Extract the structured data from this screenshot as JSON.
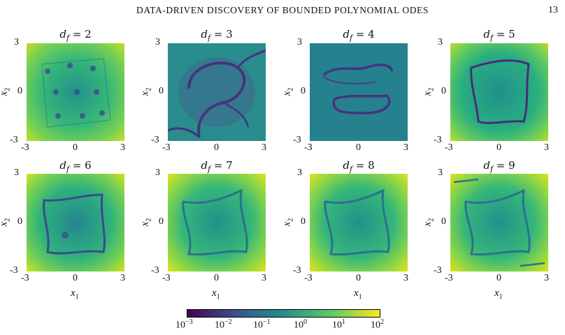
{
  "header": {
    "title": "DATA-DRIVEN DISCOVERY OF BOUNDED POLYNOMIAL ODES",
    "page_number": "13"
  },
  "panels": [
    {
      "title": {
        "var": "d",
        "sub": "f",
        "value": "2"
      }
    },
    {
      "title": {
        "var": "d",
        "sub": "f",
        "value": "3"
      }
    },
    {
      "title": {
        "var": "d",
        "sub": "f",
        "value": "4"
      }
    },
    {
      "title": {
        "var": "d",
        "sub": "f",
        "value": "5"
      }
    },
    {
      "title": {
        "var": "d",
        "sub": "f",
        "value": "6"
      }
    },
    {
      "title": {
        "var": "d",
        "sub": "f",
        "value": "7"
      }
    },
    {
      "title": {
        "var": "d",
        "sub": "f",
        "value": "8"
      }
    },
    {
      "title": {
        "var": "d",
        "sub": "f",
        "value": "9"
      }
    }
  ],
  "axes": {
    "x_ticks": [
      "-3",
      "0",
      "3"
    ],
    "y_ticks": [
      "3",
      "0",
      "-3"
    ],
    "xlabel": {
      "var": "x",
      "sub": "1"
    },
    "ylabel": {
      "var": "x",
      "sub": "2"
    },
    "range": [
      -3,
      3
    ]
  },
  "colorbar": {
    "scale": "log",
    "range": [
      0.001,
      100
    ],
    "labels": [
      {
        "base": "10",
        "exp": "−3"
      },
      {
        "base": "10",
        "exp": "−2"
      },
      {
        "base": "10",
        "exp": "−1"
      },
      {
        "base": "10",
        "exp": "0"
      },
      {
        "base": "10",
        "exp": "1"
      },
      {
        "base": "10",
        "exp": "2"
      }
    ],
    "colors": [
      "#440154",
      "#3b528b",
      "#21918c",
      "#5ec962",
      "#fde725"
    ]
  },
  "chart_data": {
    "type": "heatmap",
    "x_range": [
      -3,
      3
    ],
    "y_range": [
      -3,
      3
    ],
    "xlabel": "x1",
    "ylabel": "x2",
    "color_scale": "log",
    "color_range": [
      0.001,
      100
    ],
    "panels": [
      "d_f = 2",
      "d_f = 3",
      "d_f = 4",
      "d_f = 5",
      "d_f = 6",
      "d_f = 7",
      "d_f = 8",
      "d_f = 9"
    ]
  }
}
